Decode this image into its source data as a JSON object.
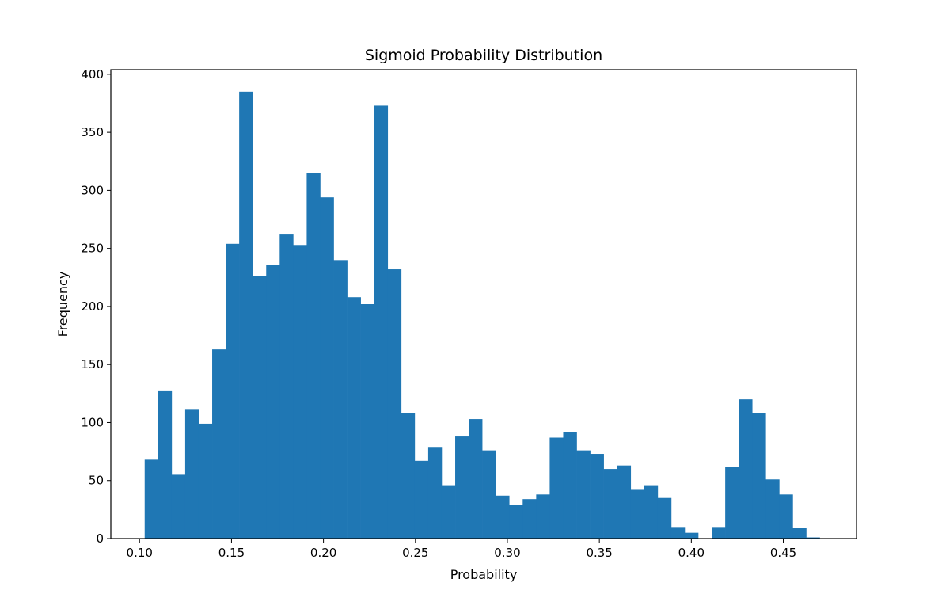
{
  "chart_data": {
    "type": "bar",
    "title": "Sigmoid Probability Distribution",
    "xlabel": "Probability",
    "ylabel": "Frequency",
    "xlim": [
      0.0844,
      0.4898
    ],
    "ylim": [
      0,
      404
    ],
    "grid": false,
    "bar_color": "#1f77b4",
    "x_ticks": [
      0.1,
      0.15,
      0.2,
      0.25,
      0.3,
      0.35,
      0.4,
      0.45
    ],
    "x_tick_labels": [
      "0.10",
      "0.15",
      "0.20",
      "0.25",
      "0.30",
      "0.35",
      "0.40",
      "0.45"
    ],
    "y_ticks": [
      0,
      50,
      100,
      150,
      200,
      250,
      300,
      350,
      400
    ],
    "y_tick_labels": [
      "0",
      "50",
      "100",
      "150",
      "200",
      "250",
      "300",
      "350",
      "400"
    ],
    "bin_start": 0.1028,
    "bin_width": 0.00734,
    "values": [
      68,
      127,
      55,
      111,
      99,
      163,
      254,
      385,
      226,
      236,
      262,
      253,
      315,
      294,
      240,
      208,
      202,
      373,
      232,
      108,
      67,
      79,
      46,
      88,
      103,
      76,
      37,
      29,
      34,
      38,
      87,
      92,
      76,
      73,
      60,
      63,
      42,
      46,
      35,
      10,
      5,
      0,
      10,
      62,
      120,
      108,
      51,
      38,
      9,
      1
    ]
  }
}
